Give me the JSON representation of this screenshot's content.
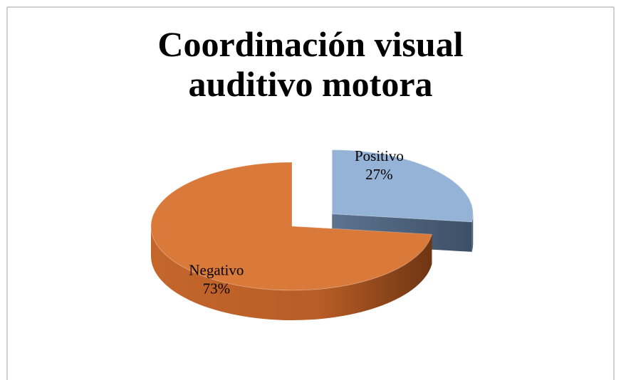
{
  "chart_data": {
    "type": "pie",
    "title": "Coordinación visual auditivo motora",
    "categories": [
      "Positivo",
      "Negativo"
    ],
    "values": [
      27,
      73
    ],
    "value_labels": [
      "27%",
      "73%"
    ],
    "colors": [
      "#95b3d7",
      "#d9793a"
    ],
    "exploded": [
      true,
      false
    ]
  }
}
